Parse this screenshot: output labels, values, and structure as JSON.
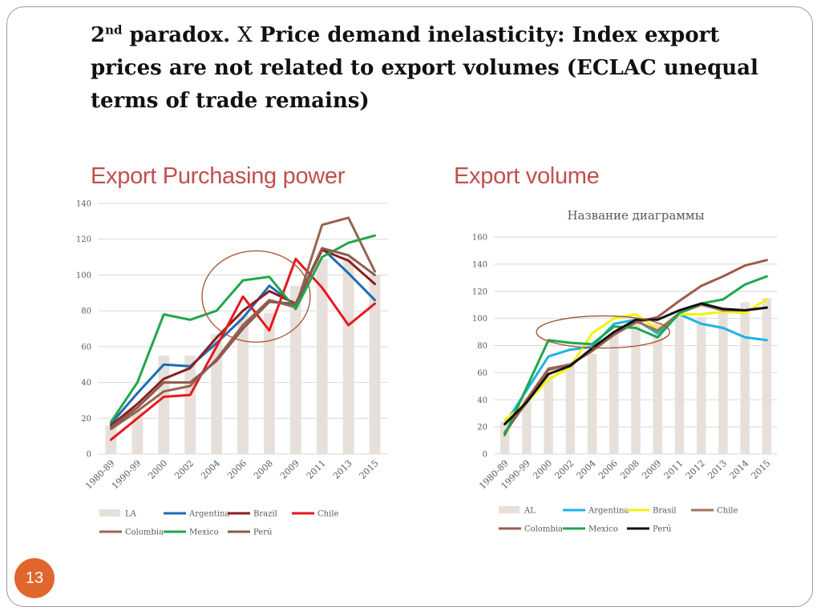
{
  "slide": {
    "title": {
      "num": "2",
      "sup": "nd",
      "p1": " paradox. ",
      "x": "X",
      "p2": " Price demand  inelasticity: Index export prices  are not related to export volumes (ECLAC unequal terms of trade remains)"
    },
    "subtitle_left": "Export Purchasing power",
    "subtitle_right": "Export volume",
    "page_number": "13"
  },
  "colors": {
    "subtitle": "#c0504d",
    "badge": "#e0662e",
    "circle": "#a0522d"
  },
  "chart_data": [
    {
      "type": "bar+line",
      "title": "",
      "categories": [
        "1980-89",
        "1990-99",
        "2000",
        "2002",
        "2004",
        "2006",
        "2008",
        "2009",
        "2011",
        "2013",
        "2015"
      ],
      "ylim": [
        0,
        140
      ],
      "yticks": [
        0,
        20,
        40,
        60,
        80,
        100,
        120,
        140
      ],
      "grid": true,
      "legend_position": "bottom",
      "highlight_ellipse": {
        "from_category": "2004",
        "to_category": "2009",
        "y_center": 88
      },
      "bar_series": {
        "name": "LA",
        "color": "#e7e0da",
        "values": [
          16,
          24,
          55,
          55,
          67,
          78,
          79,
          94,
          109,
          110,
          100
        ]
      },
      "series": [
        {
          "name": "Argentina",
          "color": "#1f6bb4",
          "values": [
            17,
            34,
            50,
            49,
            62,
            76,
            94,
            83,
            115,
            101,
            86
          ]
        },
        {
          "name": "Brazil",
          "color": "#8b1f1f",
          "values": [
            16,
            28,
            42,
            48,
            65,
            80,
            91,
            84,
            114,
            108,
            95
          ]
        },
        {
          "name": "Chile",
          "color": "#e8171e",
          "values": [
            8,
            20,
            32,
            33,
            60,
            88,
            69,
            109,
            93,
            72,
            84
          ]
        },
        {
          "name": "Colombia",
          "color": "#9a6150",
          "values": [
            14,
            24,
            35,
            38,
            53,
            72,
            86,
            82,
            128,
            132,
            102
          ]
        },
        {
          "name": "Mexico",
          "color": "#22a64a",
          "values": [
            18,
            40,
            78,
            75,
            80,
            97,
            99,
            81,
            110,
            118,
            122
          ]
        },
        {
          "name": "Perú",
          "color": "#8b5a4f",
          "values": [
            15,
            26,
            40,
            40,
            52,
            70,
            85,
            84,
            115,
            111,
            100
          ]
        }
      ]
    },
    {
      "type": "bar+line",
      "title": "Название диаграммы",
      "categories": [
        "1980-89",
        "1990-99",
        "2000",
        "2002",
        "2004",
        "2006",
        "2008",
        "2009",
        "2011",
        "2012",
        "2013",
        "2014",
        "2015"
      ],
      "ylim": [
        0,
        160
      ],
      "yticks": [
        0,
        20,
        40,
        60,
        80,
        100,
        120,
        140,
        160
      ],
      "grid": true,
      "legend_position": "bottom",
      "highlight_ellipse": {
        "from_category": "2000",
        "to_category": "2009",
        "y_center": 90
      },
      "bar_series": {
        "name": "AL",
        "color": "#e7e0da",
        "values": [
          24,
          42,
          58,
          67,
          74,
          89,
          101,
          97,
          103,
          101,
          106,
          112,
          115
        ]
      },
      "series": [
        {
          "name": "Argentina",
          "color": "#1fb3e6",
          "values": [
            22,
            47,
            72,
            77,
            79,
            96,
            99,
            89,
            103,
            96,
            93,
            86,
            84
          ]
        },
        {
          "name": "Brasil",
          "color": "#f2f20a",
          "values": [
            25,
            38,
            55,
            64,
            89,
            100,
            103,
            92,
            103,
            103,
            105,
            104,
            114
          ]
        },
        {
          "name": "Chile",
          "color": "#a0735a",
          "values": [
            16,
            38,
            62,
            66,
            76,
            88,
            98,
            91,
            104,
            110,
            106,
            106,
            108
          ]
        },
        {
          "name": "Colombia",
          "color": "#9e5b4a",
          "values": [
            15,
            40,
            63,
            66,
            76,
            88,
            97,
            101,
            113,
            124,
            131,
            139,
            143
          ]
        },
        {
          "name": "Mexico",
          "color": "#1ea84c",
          "values": [
            14,
            49,
            84,
            82,
            81,
            94,
            93,
            86,
            104,
            111,
            114,
            125,
            131
          ]
        },
        {
          "name": "Perú",
          "color": "#111111",
          "values": [
            22,
            38,
            59,
            65,
            78,
            90,
            99,
            99,
            106,
            111,
            107,
            106,
            108
          ]
        }
      ]
    }
  ]
}
